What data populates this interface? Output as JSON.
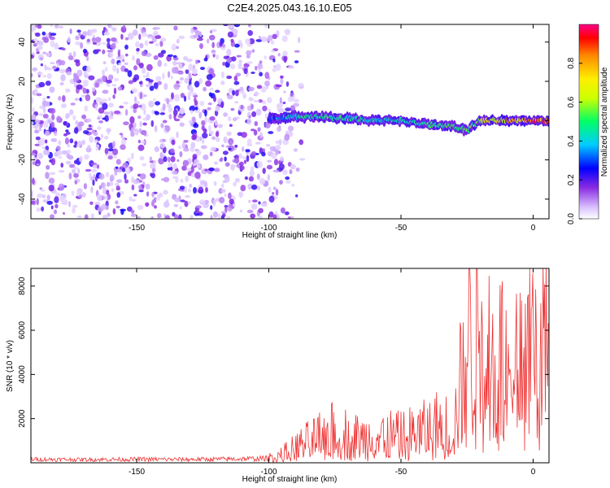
{
  "figure_title": "C2E4.2025.043.16.10.E05",
  "chart_data": [
    {
      "type": "heatmap",
      "title": "C2E4.2025.043.16.10.E05",
      "xlabel": "Height of straight line (km)",
      "ylabel": "Frequency (Hz)",
      "xlim": [
        -190,
        6
      ],
      "ylim": [
        -50,
        49
      ],
      "xticks": [
        -150,
        -100,
        -50,
        0
      ],
      "yticks": [
        -40,
        -20,
        0,
        20,
        40
      ],
      "colorbar": {
        "label": "Normalized spectral amplitude",
        "range": [
          0.0,
          1.0
        ],
        "ticks": [
          0.0,
          0.2,
          0.4,
          0.6,
          0.8
        ],
        "tick_labels": [
          "0.0",
          "0.2",
          "0.4",
          "0.6",
          "0.8"
        ],
        "colormap": [
          "#ffffff",
          "#c9a8ff",
          "#8a2be2",
          "#0000ff",
          "#00ccff",
          "#00ff66",
          "#ffff00",
          "#ff8800",
          "#ff0000",
          "#ff0066"
        ]
      },
      "ridge": {
        "x": [
          -100,
          -90,
          -80,
          -70,
          -60,
          -50,
          -40,
          -30,
          -25,
          -20,
          -10,
          0,
          6
        ],
        "frequency": [
          1,
          2,
          2,
          1,
          0,
          0,
          -2,
          -3,
          -5,
          0,
          0,
          0,
          0
        ],
        "amplitude": [
          0.3,
          0.45,
          0.5,
          0.5,
          0.45,
          0.45,
          0.5,
          0.55,
          0.55,
          0.65,
          0.8,
          0.9,
          0.9
        ]
      },
      "noise_region": {
        "x_from": -190,
        "x_to": -85,
        "amplitude": 0.15
      }
    },
    {
      "type": "line",
      "xlabel": "Height of straight line (km)",
      "ylabel": "SNR (10 * v/v)",
      "xlim": [
        -190,
        6
      ],
      "ylim": [
        0,
        8800
      ],
      "xticks": [
        -150,
        -100,
        -50,
        0
      ],
      "yticks": [
        2000,
        4000,
        6000,
        8000
      ],
      "series": [
        {
          "name": "SNR",
          "color": "#ee3333",
          "x": [
            -190,
            -170,
            -150,
            -130,
            -110,
            -100,
            -95,
            -90,
            -85,
            -80,
            -75,
            -70,
            -65,
            -60,
            -55,
            -50,
            -45,
            -40,
            -35,
            -30,
            -28,
            -25,
            -22,
            -20,
            -18,
            -15,
            -10,
            -5,
            0,
            6
          ],
          "y": [
            200,
            180,
            200,
            190,
            220,
            250,
            400,
            700,
            1000,
            1200,
            1500,
            1300,
            1100,
            1200,
            1300,
            1200,
            1400,
            1500,
            1800,
            1500,
            3000,
            5500,
            7000,
            7500,
            6000,
            4500,
            4800,
            5500,
            5800,
            6200
          ]
        }
      ]
    }
  ]
}
